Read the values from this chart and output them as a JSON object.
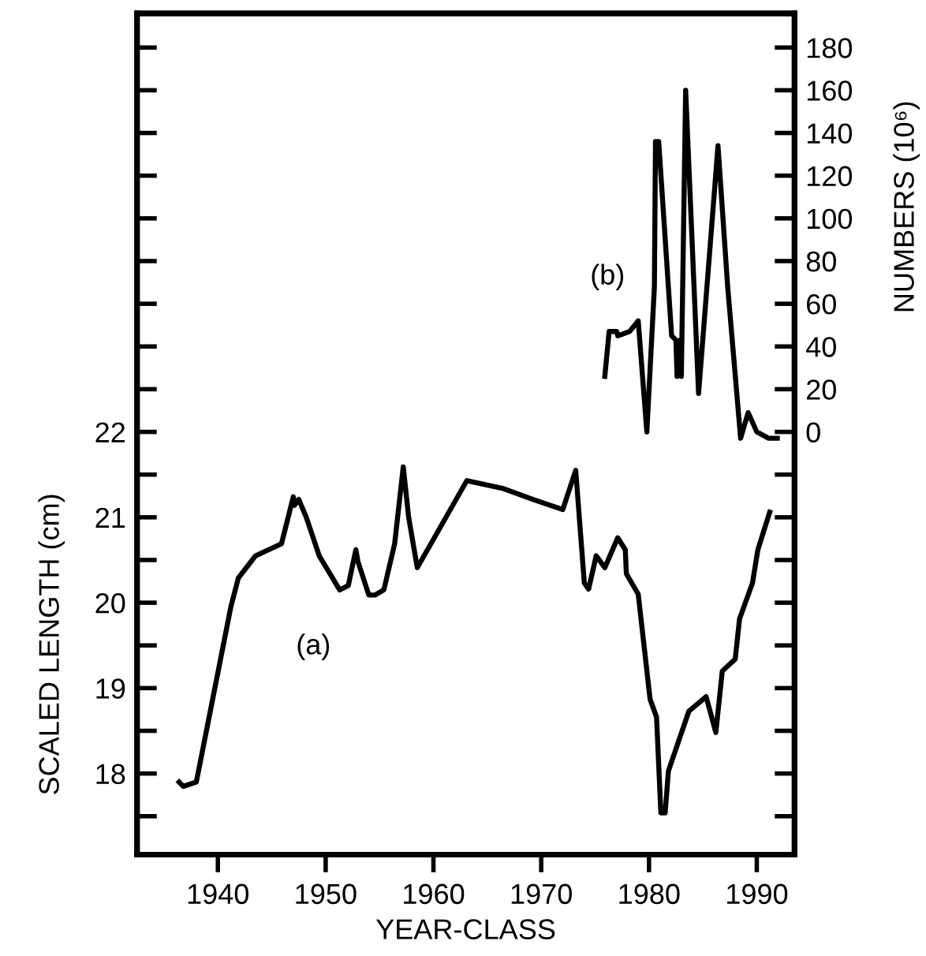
{
  "chart_data": {
    "type": "line",
    "xlabel": "YEAR-CLASS",
    "ylabel": "SCALED LENGTH (cm)",
    "y2label": "NUMBERS (10⁶)",
    "xlim": [
      1932.5,
      1993.5
    ],
    "xticks": [
      1940,
      1950,
      1960,
      1970,
      1980,
      1990
    ],
    "ylim": [
      17.05,
      26.9
    ],
    "yticks": [
      {
        "value": 17.5,
        "label": null
      },
      18,
      {
        "value": 18.5,
        "label": null
      },
      19,
      {
        "value": 19.5,
        "label": null
      },
      20,
      {
        "value": 20.5,
        "label": null
      },
      21,
      {
        "value": 21.5,
        "label": null
      },
      22,
      {
        "value": 22.5,
        "label": null
      },
      {
        "value": 23,
        "label": null
      },
      {
        "value": 23.5,
        "label": null
      },
      {
        "value": 24,
        "label": null
      },
      {
        "value": 24.5,
        "label": null
      },
      {
        "value": 25,
        "label": null
      },
      {
        "value": 25.5,
        "label": null
      },
      {
        "value": 26,
        "label": null
      },
      {
        "value": 26.5,
        "label": null
      }
    ],
    "y2lim": [
      -198,
      196
    ],
    "y2ticks": [
      {
        "value": -180,
        "label": null
      },
      {
        "value": -160,
        "label": null
      },
      {
        "value": -140,
        "label": null
      },
      {
        "value": -120,
        "label": null
      },
      {
        "value": -100,
        "label": null
      },
      {
        "value": -80,
        "label": null
      },
      {
        "value": -60,
        "label": null
      },
      {
        "value": -40,
        "label": null
      },
      {
        "value": -20,
        "label": null
      },
      0,
      20,
      40,
      60,
      80,
      100,
      120,
      140,
      160,
      180
    ],
    "grid": false,
    "legend": false,
    "marker": "none",
    "line_style": "solid",
    "series": [
      {
        "name": "(a)",
        "color": "#000000",
        "x": [
          1936.4,
          1936.8,
          1938.0,
          1941.2,
          1941.9,
          1943.5,
          1945.9,
          1947.0,
          1947.1,
          1947.5,
          1948.2,
          1949.4,
          1951.3,
          1952.1,
          1952.8,
          1953.0,
          1954.0,
          1954.6,
          1955.4,
          1956.4,
          1957.2,
          1957.7,
          1958.5,
          1963.1,
          1966.4,
          1969.2,
          1972.0,
          1973.2,
          1974.0,
          1974.4,
          1975.1,
          1975.9,
          1977.1,
          1977.8,
          1977.9,
          1979.0,
          1980.1,
          1980.7,
          1981.1,
          1981.5,
          1981.8,
          1983.7,
          1985.3,
          1986.2,
          1986.8,
          1988.0,
          1988.4,
          1989.6,
          1990.1,
          1991.2
        ],
        "values": [
          17.9,
          17.85,
          17.9,
          19.95,
          20.29,
          20.55,
          20.69,
          21.24,
          21.14,
          21.21,
          21.0,
          20.55,
          20.15,
          20.2,
          20.62,
          20.48,
          20.09,
          20.09,
          20.15,
          20.69,
          21.59,
          21.0,
          20.41,
          21.43,
          21.34,
          21.21,
          21.09,
          21.55,
          20.23,
          20.16,
          20.55,
          20.41,
          20.76,
          20.62,
          20.34,
          20.1,
          18.87,
          18.66,
          17.54,
          17.54,
          18.03,
          18.73,
          18.9,
          18.48,
          19.2,
          19.34,
          19.81,
          20.23,
          20.62,
          21.06
        ]
      },
      {
        "name": "(b)",
        "color": "#000000",
        "axis": "y2",
        "x": [
          1975.9,
          1976.3,
          1977.0,
          1977.1,
          1978.2,
          1979.0,
          1979.8,
          1980.5,
          1980.6,
          1980.9,
          1982.1,
          1982.5,
          1982.6,
          1982.9,
          1983.0,
          1983.4,
          1984.6,
          1986.4,
          1987.3,
          1988.5,
          1989.2,
          1990.0,
          1991.1,
          1991.9
        ],
        "values": [
          26,
          47,
          47,
          45,
          47,
          52,
          0,
          68,
          136,
          136,
          45,
          43,
          26,
          43,
          26,
          160,
          18,
          134,
          68,
          -3,
          9,
          0,
          -3,
          -3
        ]
      }
    ]
  }
}
